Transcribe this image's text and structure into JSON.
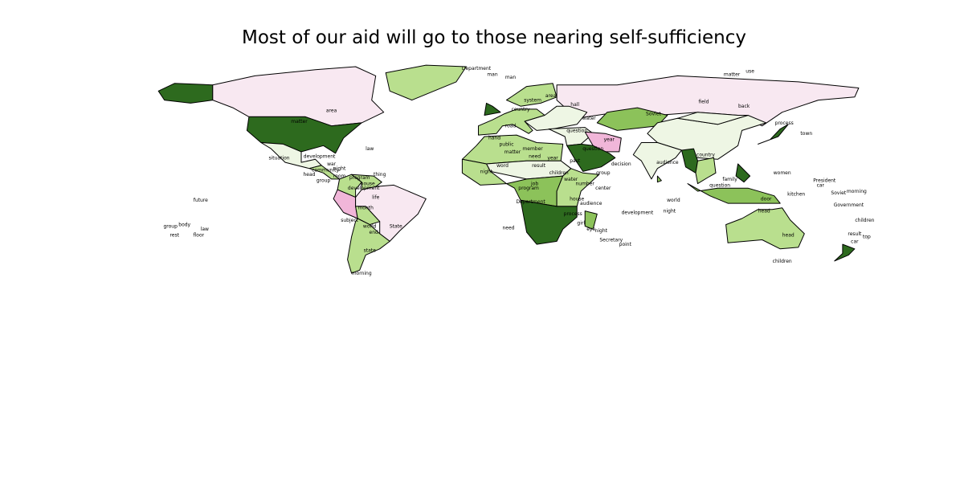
{
  "title": "Most of our aid will go to those nearing self-sufficiency",
  "palette": {
    "dark_green": "#2d6a1e",
    "mid_green": "#8cc25a",
    "light_green": "#b9df8e",
    "pale_green": "#eef6e4",
    "pale_pink": "#f8e8f1",
    "pink": "#f1b6d9",
    "white": "#ffffff"
  },
  "regions": [
    {
      "name": "alaska",
      "fill": "dark_green"
    },
    {
      "name": "canada",
      "fill": "pale_pink"
    },
    {
      "name": "usa",
      "fill": "dark_green"
    },
    {
      "name": "greenland",
      "fill": "light_green"
    },
    {
      "name": "mexico",
      "fill": "pale_green"
    },
    {
      "name": "central-america",
      "fill": "light_green"
    },
    {
      "name": "colombia",
      "fill": "light_green"
    },
    {
      "name": "venezuela",
      "fill": "light_green"
    },
    {
      "name": "peru",
      "fill": "pink"
    },
    {
      "name": "brazil",
      "fill": "pale_pink"
    },
    {
      "name": "bolivia",
      "fill": "light_green"
    },
    {
      "name": "chile-argentina",
      "fill": "light_green"
    },
    {
      "name": "russia",
      "fill": "pale_pink"
    },
    {
      "name": "scandinavia",
      "fill": "light_green"
    },
    {
      "name": "uk",
      "fill": "dark_green"
    },
    {
      "name": "west-europe",
      "fill": "light_green"
    },
    {
      "name": "east-europe",
      "fill": "pale_green"
    },
    {
      "name": "kazakhstan",
      "fill": "mid_green"
    },
    {
      "name": "china",
      "fill": "pale_green"
    },
    {
      "name": "mongolia",
      "fill": "pale_green"
    },
    {
      "name": "india",
      "fill": "pale_green"
    },
    {
      "name": "myanmar",
      "fill": "dark_green"
    },
    {
      "name": "se-asia",
      "fill": "light_green"
    },
    {
      "name": "japan",
      "fill": "dark_green"
    },
    {
      "name": "middle-east",
      "fill": "pale_green"
    },
    {
      "name": "iran",
      "fill": "pink"
    },
    {
      "name": "arabia",
      "fill": "dark_green"
    },
    {
      "name": "north-africa",
      "fill": "light_green"
    },
    {
      "name": "sahel",
      "fill": "pale_green"
    },
    {
      "name": "west-africa",
      "fill": "light_green"
    },
    {
      "name": "central-africa",
      "fill": "mid_green"
    },
    {
      "name": "east-africa",
      "fill": "light_green"
    },
    {
      "name": "southern-africa",
      "fill": "dark_green"
    },
    {
      "name": "madagascar",
      "fill": "mid_green"
    },
    {
      "name": "indonesia",
      "fill": "mid_green"
    },
    {
      "name": "philippines",
      "fill": "dark_green"
    },
    {
      "name": "australia",
      "fill": "light_green"
    },
    {
      "name": "new-zealand",
      "fill": "dark_green"
    },
    {
      "name": "sri-lanka",
      "fill": "mid_green"
    }
  ],
  "labels": [
    {
      "text": "matter",
      "lon": -98,
      "lat": 45
    },
    {
      "text": "area",
      "lon": -82,
      "lat": 52
    },
    {
      "text": "law",
      "lon": -63,
      "lat": 27
    },
    {
      "text": "situation",
      "lon": -108,
      "lat": 21
    },
    {
      "text": "development",
      "lon": -88,
      "lat": 22
    },
    {
      "text": "war",
      "lon": -82,
      "lat": 17
    },
    {
      "text": "night",
      "lon": -78,
      "lat": 14
    },
    {
      "text": "community",
      "lon": -85,
      "lat": 13
    },
    {
      "text": "head",
      "lon": -93,
      "lat": 10
    },
    {
      "text": "room",
      "lon": -78,
      "lat": 9
    },
    {
      "text": "group",
      "lon": -86,
      "lat": 6
    },
    {
      "text": "house",
      "lon": -64,
      "lat": 4
    },
    {
      "text": "development",
      "lon": -66,
      "lat": 1
    },
    {
      "text": "program",
      "lon": -68,
      "lat": 8
    },
    {
      "text": "thing",
      "lon": -58,
      "lat": 10
    },
    {
      "text": "month",
      "lon": -65,
      "lat": -12
    },
    {
      "text": "life",
      "lon": -60,
      "lat": -5
    },
    {
      "text": "subject",
      "lon": -73,
      "lat": -20
    },
    {
      "text": "world",
      "lon": -63,
      "lat": -24
    },
    {
      "text": "State",
      "lon": -50,
      "lat": -24
    },
    {
      "text": "end",
      "lon": -61,
      "lat": -28
    },
    {
      "text": "state",
      "lon": -63,
      "lat": -40
    },
    {
      "text": "morning",
      "lon": -67,
      "lat": -55
    },
    {
      "text": "future",
      "lon": -147,
      "lat": -7
    },
    {
      "text": "body",
      "lon": -155,
      "lat": -23
    },
    {
      "text": "group",
      "lon": -162,
      "lat": -24
    },
    {
      "text": "law",
      "lon": -145,
      "lat": -26
    },
    {
      "text": "rest",
      "lon": -160,
      "lat": -30
    },
    {
      "text": "floor",
      "lon": -148,
      "lat": -30
    },
    {
      "text": "man",
      "lon": -2,
      "lat": 76
    },
    {
      "text": "Department",
      "lon": -10,
      "lat": 80
    },
    {
      "text": "man",
      "lon": 7,
      "lat": 74
    },
    {
      "text": "system",
      "lon": 18,
      "lat": 59
    },
    {
      "text": "country",
      "lon": 12,
      "lat": 53
    },
    {
      "text": "area",
      "lon": 27,
      "lat": 62
    },
    {
      "text": "hall",
      "lon": 39,
      "lat": 56
    },
    {
      "text": "road",
      "lon": 7,
      "lat": 42
    },
    {
      "text": "hand",
      "lon": -1,
      "lat": 34
    },
    {
      "text": "public",
      "lon": 5,
      "lat": 30
    },
    {
      "text": "member",
      "lon": 18,
      "lat": 27
    },
    {
      "text": "question",
      "lon": 40,
      "lat": 39
    },
    {
      "text": "water",
      "lon": 46,
      "lat": 47
    },
    {
      "text": "matter",
      "lon": 8,
      "lat": 25
    },
    {
      "text": "need",
      "lon": 19,
      "lat": 22
    },
    {
      "text": "year",
      "lon": 28,
      "lat": 21
    },
    {
      "text": "past",
      "lon": 39,
      "lat": 19
    },
    {
      "text": "question",
      "lon": 48,
      "lat": 27
    },
    {
      "text": "year",
      "lon": 56,
      "lat": 33
    },
    {
      "text": "group",
      "lon": 53,
      "lat": 11
    },
    {
      "text": "result",
      "lon": 21,
      "lat": 16
    },
    {
      "text": "word",
      "lon": 3,
      "lat": 16
    },
    {
      "text": "children",
      "lon": 31,
      "lat": 11
    },
    {
      "text": "water",
      "lon": 37,
      "lat": 7
    },
    {
      "text": "job",
      "lon": 19,
      "lat": 4
    },
    {
      "text": "number",
      "lon": 44,
      "lat": 4
    },
    {
      "text": "program",
      "lon": 16,
      "lat": 1
    },
    {
      "text": "center",
      "lon": 53,
      "lat": 1
    },
    {
      "text": "house",
      "lon": 40,
      "lat": -6
    },
    {
      "text": "audience",
      "lon": 47,
      "lat": -9
    },
    {
      "text": "Department",
      "lon": 17,
      "lat": -8
    },
    {
      "text": "process",
      "lon": 38,
      "lat": -16
    },
    {
      "text": "girl",
      "lon": 42,
      "lat": -22
    },
    {
      "text": "eye",
      "lon": 47,
      "lat": -26
    },
    {
      "text": "night",
      "lon": 52,
      "lat": -27
    },
    {
      "text": "Secretary",
      "lon": 57,
      "lat": -33
    },
    {
      "text": "development",
      "lon": 70,
      "lat": -15
    },
    {
      "text": "night",
      "lon": 86,
      "lat": -14
    },
    {
      "text": "need",
      "lon": 6,
      "lat": -25
    },
    {
      "text": "night",
      "lon": -5,
      "lat": 12
    },
    {
      "text": "point",
      "lon": 64,
      "lat": -36
    },
    {
      "text": "audience",
      "lon": 85,
      "lat": 18
    },
    {
      "text": "country",
      "lon": 104,
      "lat": 23
    },
    {
      "text": "back",
      "lon": 123,
      "lat": 55
    },
    {
      "text": "field",
      "lon": 103,
      "lat": 58
    },
    {
      "text": "matter",
      "lon": 117,
      "lat": 76
    },
    {
      "text": "use",
      "lon": 126,
      "lat": 78
    },
    {
      "text": "Soviet",
      "lon": 78,
      "lat": 50
    },
    {
      "text": "process",
      "lon": 143,
      "lat": 44
    },
    {
      "text": "town",
      "lon": 154,
      "lat": 37
    },
    {
      "text": "question",
      "lon": 111,
      "lat": 3
    },
    {
      "text": "family",
      "lon": 116,
      "lat": 7
    },
    {
      "text": "women",
      "lon": 142,
      "lat": 11
    },
    {
      "text": "President",
      "lon": 163,
      "lat": 6
    },
    {
      "text": "car",
      "lon": 161,
      "lat": 3
    },
    {
      "text": "kitchen",
      "lon": 149,
      "lat": -3
    },
    {
      "text": "Soviet",
      "lon": 170,
      "lat": -2
    },
    {
      "text": "morning",
      "lon": 179,
      "lat": -1
    },
    {
      "text": "Government",
      "lon": 175,
      "lat": -10
    },
    {
      "text": "children",
      "lon": 183,
      "lat": -20
    },
    {
      "text": "head",
      "lon": 133,
      "lat": -14
    },
    {
      "text": "door",
      "lon": 134,
      "lat": -6
    },
    {
      "text": "result",
      "lon": 178,
      "lat": -29
    },
    {
      "text": "car",
      "lon": 178,
      "lat": -34
    },
    {
      "text": "top",
      "lon": 184,
      "lat": -31
    },
    {
      "text": "children",
      "lon": 142,
      "lat": -47
    },
    {
      "text": "head",
      "lon": 145,
      "lat": -30
    },
    {
      "text": "world",
      "lon": 88,
      "lat": -7
    },
    {
      "text": "decision",
      "lon": 62,
      "lat": 17
    }
  ]
}
